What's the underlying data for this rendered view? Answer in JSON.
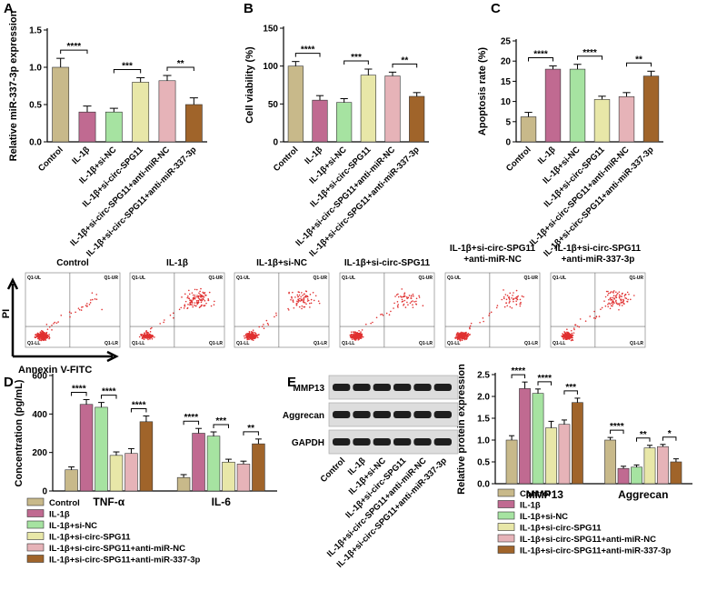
{
  "chart_data": [
    {
      "type": "bar",
      "panel": "A",
      "ylabel": "Relative miR-337-3p expression",
      "categories": [
        "Control",
        "IL-1β",
        "IL-1β+si-NC",
        "IL-1β+si-circ-SPG11",
        "IL-1β+si-circ-SPG11+anti-miR-NC",
        "IL-1β+si-circ-SPG11+anti-miR-337-3p"
      ],
      "values": [
        1.0,
        0.4,
        0.4,
        0.8,
        0.82,
        0.5
      ],
      "errors": [
        0.12,
        0.08,
        0.05,
        0.06,
        0.07,
        0.09
      ],
      "colors": [
        "#c8b98a",
        "#c06a91",
        "#a6e3a1",
        "#e8e7a8",
        "#e6b3b8",
        "#a0642a"
      ],
      "ylim": [
        0,
        1.5
      ],
      "yticks": [
        {
          "value": 0,
          "label": "0.0"
        },
        {
          "value": 0.5,
          "label": "0.5"
        },
        {
          "value": 1,
          "label": "1.0"
        },
        {
          "value": 1.5,
          "label": "1.5"
        }
      ],
      "annotations": [
        "****",
        "***",
        "**"
      ]
    },
    {
      "type": "bar",
      "panel": "B",
      "ylabel": "Cell viability (%)",
      "categories": [
        "Control",
        "IL-1β",
        "IL-1β+si-NC",
        "IL-1β+si-circ-SPG11",
        "IL-1β+si-circ-SPG11+anti-miR-NC",
        "IL-1β+si-circ-SPG11+anti-miR-337-3p"
      ],
      "values": [
        100,
        55,
        52,
        88,
        87,
        60
      ],
      "errors": [
        6,
        6,
        5,
        8,
        5,
        5
      ],
      "colors": [
        "#c8b98a",
        "#c06a91",
        "#a6e3a1",
        "#e8e7a8",
        "#e6b3b8",
        "#a0642a"
      ],
      "ylim": [
        0,
        150
      ],
      "yticks": [
        0,
        50,
        100,
        150
      ],
      "annotations": [
        "****",
        "***",
        "**"
      ]
    },
    {
      "type": "bar",
      "panel": "C",
      "ylabel": "Apoptosis rate (%)",
      "categories": [
        "Control",
        "IL-1β",
        "IL-1β+si-NC",
        "IL-1β+si-circ-SPG11",
        "IL-1β+si-circ-SPG11+anti-miR-NC",
        "IL-1β+si-circ-SPG11+anti-miR-337-3p"
      ],
      "values": [
        6.2,
        18,
        18,
        10.5,
        11.2,
        16.3
      ],
      "errors": [
        1.1,
        0.8,
        1.2,
        0.8,
        1,
        1.2
      ],
      "colors": [
        "#c8b98a",
        "#c06a91",
        "#a6e3a1",
        "#e8e7a8",
        "#e6b3b8",
        "#a0642a"
      ],
      "ylim": [
        0,
        25
      ],
      "yticks": [
        0,
        5,
        10,
        15,
        20,
        25
      ],
      "annotations": [
        "****",
        "****",
        "**"
      ]
    },
    {
      "type": "grouped_bar",
      "panel": "D",
      "ylabel": "Concentration (pg/mL)",
      "categories": [
        "TNF-α",
        "IL-6"
      ],
      "series": [
        {
          "name": "Control",
          "color": "#c8b98a",
          "values": [
            110,
            70
          ],
          "errors": [
            15,
            15
          ]
        },
        {
          "name": "IL-1β",
          "color": "#c06a91",
          "values": [
            450,
            300
          ],
          "errors": [
            25,
            25
          ]
        },
        {
          "name": "IL-1β+si-NC",
          "color": "#a6e3a1",
          "values": [
            435,
            285
          ],
          "errors": [
            25,
            22
          ]
        },
        {
          "name": "IL-1β+si-circ-SPG11",
          "color": "#e8e7a8",
          "values": [
            185,
            150
          ],
          "errors": [
            18,
            15
          ]
        },
        {
          "name": "IL-1β+si-circ-SPG11+anti-miR-NC",
          "color": "#e6b3b8",
          "values": [
            195,
            140
          ],
          "errors": [
            25,
            15
          ]
        },
        {
          "name": "IL-1β+si-circ-SPG11+anti-miR-337-3p",
          "color": "#a0642a",
          "values": [
            360,
            245
          ],
          "errors": [
            30,
            25
          ]
        }
      ],
      "ylim": [
        0,
        600
      ],
      "yticks": [
        0,
        200,
        400,
        600
      ],
      "annotations": [
        [
          "****",
          "****",
          "****"
        ],
        [
          "****",
          "***",
          "**"
        ]
      ]
    },
    {
      "type": "grouped_bar",
      "panel": "E",
      "ylabel": "Relative protein expression",
      "categories": [
        "MMP13",
        "Aggrecan"
      ],
      "series": [
        {
          "name": "Control",
          "color": "#c8b98a",
          "values": [
            1.0,
            1.0
          ],
          "errors": [
            0.1,
            0.06
          ]
        },
        {
          "name": "IL-1β",
          "color": "#c06a91",
          "values": [
            2.18,
            0.35
          ],
          "errors": [
            0.15,
            0.05
          ]
        },
        {
          "name": "IL-1β+si-NC",
          "color": "#a6e3a1",
          "values": [
            2.07,
            0.38
          ],
          "errors": [
            0.1,
            0.05
          ]
        },
        {
          "name": "IL-1β+si-circ-SPG11",
          "color": "#e8e7a8",
          "values": [
            1.28,
            0.82
          ],
          "errors": [
            0.15,
            0.06
          ]
        },
        {
          "name": "IL-1β+si-circ-SPG11+anti-miR-NC",
          "color": "#e6b3b8",
          "values": [
            1.36,
            0.85
          ],
          "errors": [
            0.1,
            0.05
          ]
        },
        {
          "name": "IL-1β+si-circ-SPG11+anti-miR-337-3p",
          "color": "#a0642a",
          "values": [
            1.86,
            0.5
          ],
          "errors": [
            0.1,
            0.07
          ]
        }
      ],
      "ylim": [
        0,
        2.5
      ],
      "yticks": [
        {
          "value": 0,
          "label": "0.0"
        },
        {
          "value": 0.5,
          "label": "0.5"
        },
        {
          "value": 1,
          "label": "1.0"
        },
        {
          "value": 1.5,
          "label": "1.5"
        },
        {
          "value": 2,
          "label": "2.0"
        },
        {
          "value": 2.5,
          "label": "2.5"
        }
      ],
      "annotations": [
        [
          "****",
          "****",
          "***"
        ],
        [
          "****",
          "**",
          "*"
        ]
      ]
    }
  ],
  "flow_cytometry": {
    "titles": [
      [
        "Control"
      ],
      [
        "IL-1β"
      ],
      [
        "IL-1β+si-NC"
      ],
      [
        "IL-1β+si-circ-SPG11"
      ],
      [
        "IL-1β+si-circ-SPG11",
        "+anti-miR-NC"
      ],
      [
        "IL-1β+si-circ-SPG11",
        "+anti-miR-337-3p"
      ]
    ],
    "x_label": "Annexin V-FITC",
    "y_label": "PI",
    "quadrants": [
      "Q1-UL",
      "Q1-UR",
      "Q1-LL",
      "Q1-LR"
    ]
  },
  "western_blot": {
    "bands": [
      "MMP13",
      "Aggrecan",
      "GAPDH"
    ],
    "lanes": [
      "Control",
      "IL-1β",
      "IL-1β+si-NC",
      "IL-1β+si-circ-SPG11",
      "IL-1β+si-circ-SPG11+anti-miR-NC",
      "IL-1β+si-circ-SPG11+anti-miR-337-3p"
    ]
  }
}
